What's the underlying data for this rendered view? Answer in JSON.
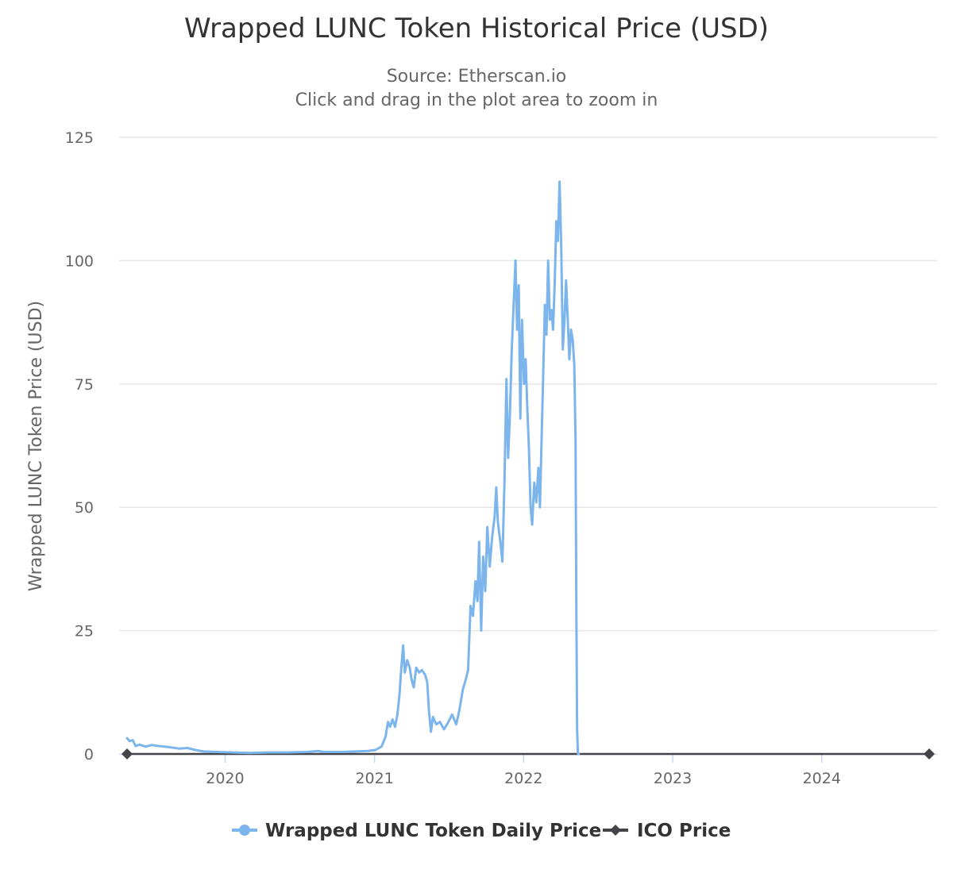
{
  "chart_data": {
    "type": "line",
    "title": "Wrapped LUNC Token Historical Price (USD)",
    "subtitle": "Source: Etherscan.io",
    "subtitle2": "Click and drag in the plot area to zoom in",
    "xlabel": "",
    "ylabel": "Wrapped LUNC Token Price (USD)",
    "ylim": [
      0,
      125
    ],
    "xlim": [
      "2019-05-06",
      "2024-09-20"
    ],
    "y_ticks": [
      0,
      25,
      50,
      75,
      100,
      125
    ],
    "x_ticks": [
      {
        "date": "2020-01-01",
        "label": "2020"
      },
      {
        "date": "2021-01-01",
        "label": "2021"
      },
      {
        "date": "2022-01-01",
        "label": "2022"
      },
      {
        "date": "2023-01-01",
        "label": "2023"
      },
      {
        "date": "2024-01-01",
        "label": "2024"
      }
    ],
    "grid": "horizontal",
    "legend_position": "bottom-center",
    "series": [
      {
        "name": "Wrapped LUNC Token Daily Price",
        "color": "#7cb5ec",
        "marker": "circle",
        "points": [
          [
            "2019-05-06",
            3.2
          ],
          [
            "2019-05-12",
            2.6
          ],
          [
            "2019-05-20",
            2.8
          ],
          [
            "2019-05-27",
            1.6
          ],
          [
            "2019-06-05",
            1.9
          ],
          [
            "2019-06-20",
            1.5
          ],
          [
            "2019-07-05",
            1.8
          ],
          [
            "2019-07-25",
            1.6
          ],
          [
            "2019-08-15",
            1.4
          ],
          [
            "2019-09-10",
            1.1
          ],
          [
            "2019-10-01",
            1.2
          ],
          [
            "2019-10-20",
            0.8
          ],
          [
            "2019-11-10",
            0.5
          ],
          [
            "2019-12-10",
            0.4
          ],
          [
            "2020-01-20",
            0.3
          ],
          [
            "2020-03-01",
            0.2
          ],
          [
            "2020-04-15",
            0.3
          ],
          [
            "2020-06-01",
            0.3
          ],
          [
            "2020-07-20",
            0.4
          ],
          [
            "2020-08-15",
            0.6
          ],
          [
            "2020-09-01",
            0.4
          ],
          [
            "2020-10-15",
            0.4
          ],
          [
            "2020-11-15",
            0.5
          ],
          [
            "2020-12-15",
            0.6
          ],
          [
            "2021-01-03",
            0.8
          ],
          [
            "2021-01-18",
            1.5
          ],
          [
            "2021-01-28",
            3.5
          ],
          [
            "2021-02-03",
            6.5
          ],
          [
            "2021-02-08",
            5.5
          ],
          [
            "2021-02-14",
            7.0
          ],
          [
            "2021-02-20",
            5.5
          ],
          [
            "2021-02-26",
            8.0
          ],
          [
            "2021-03-03",
            12.0
          ],
          [
            "2021-03-08",
            18.0
          ],
          [
            "2021-03-12",
            22.0
          ],
          [
            "2021-03-16",
            16.5
          ],
          [
            "2021-03-22",
            19.0
          ],
          [
            "2021-03-28",
            17.5
          ],
          [
            "2021-04-02",
            15.0
          ],
          [
            "2021-04-07",
            13.5
          ],
          [
            "2021-04-13",
            17.5
          ],
          [
            "2021-04-20",
            16.5
          ],
          [
            "2021-04-27",
            17.0
          ],
          [
            "2021-05-05",
            16.0
          ],
          [
            "2021-05-10",
            14.5
          ],
          [
            "2021-05-14",
            9.0
          ],
          [
            "2021-05-19",
            4.5
          ],
          [
            "2021-05-24",
            7.5
          ],
          [
            "2021-06-01",
            6.0
          ],
          [
            "2021-06-10",
            6.5
          ],
          [
            "2021-06-20",
            5.0
          ],
          [
            "2021-07-01",
            6.5
          ],
          [
            "2021-07-10",
            8.0
          ],
          [
            "2021-07-20",
            6.0
          ],
          [
            "2021-07-28",
            9.0
          ],
          [
            "2021-08-05",
            13.0
          ],
          [
            "2021-08-12",
            15.0
          ],
          [
            "2021-08-18",
            17.0
          ],
          [
            "2021-08-24",
            30.0
          ],
          [
            "2021-08-30",
            28.0
          ],
          [
            "2021-09-05",
            35.0
          ],
          [
            "2021-09-10",
            31.0
          ],
          [
            "2021-09-14",
            43.0
          ],
          [
            "2021-09-19",
            25.0
          ],
          [
            "2021-09-24",
            40.0
          ],
          [
            "2021-09-29",
            33.0
          ],
          [
            "2021-10-04",
            46.0
          ],
          [
            "2021-10-10",
            38.0
          ],
          [
            "2021-10-16",
            44.0
          ],
          [
            "2021-10-22",
            48.0
          ],
          [
            "2021-10-26",
            54.0
          ],
          [
            "2021-10-30",
            47.0
          ],
          [
            "2021-11-05",
            43.0
          ],
          [
            "2021-11-10",
            39.0
          ],
          [
            "2021-11-15",
            55.0
          ],
          [
            "2021-11-20",
            76.0
          ],
          [
            "2021-11-24",
            60.0
          ],
          [
            "2021-11-28",
            68.0
          ],
          [
            "2021-12-03",
            82.0
          ],
          [
            "2021-12-08",
            92.0
          ],
          [
            "2021-12-12",
            100.0
          ],
          [
            "2021-12-16",
            86.0
          ],
          [
            "2021-12-20",
            95.0
          ],
          [
            "2021-12-24",
            68.0
          ],
          [
            "2021-12-28",
            88.0
          ],
          [
            "2022-01-02",
            75.0
          ],
          [
            "2022-01-06",
            80.0
          ],
          [
            "2022-01-10",
            70.0
          ],
          [
            "2022-01-14",
            62.0
          ],
          [
            "2022-01-18",
            50.0
          ],
          [
            "2022-01-22",
            46.5
          ],
          [
            "2022-01-27",
            55.0
          ],
          [
            "2022-02-01",
            51.0
          ],
          [
            "2022-02-06",
            58.0
          ],
          [
            "2022-02-10",
            50.0
          ],
          [
            "2022-02-14",
            64.0
          ],
          [
            "2022-02-18",
            77.0
          ],
          [
            "2022-02-22",
            91.0
          ],
          [
            "2022-02-26",
            85.0
          ],
          [
            "2022-03-02",
            100.0
          ],
          [
            "2022-03-06",
            88.0
          ],
          [
            "2022-03-10",
            90.0
          ],
          [
            "2022-03-14",
            86.0
          ],
          [
            "2022-03-18",
            95.0
          ],
          [
            "2022-03-22",
            108.0
          ],
          [
            "2022-03-26",
            104.0
          ],
          [
            "2022-03-30",
            116.0
          ],
          [
            "2022-04-03",
            103.0
          ],
          [
            "2022-04-07",
            82.0
          ],
          [
            "2022-04-11",
            88.0
          ],
          [
            "2022-04-15",
            96.0
          ],
          [
            "2022-04-19",
            88.0
          ],
          [
            "2022-04-23",
            80.0
          ],
          [
            "2022-04-27",
            86.0
          ],
          [
            "2022-05-01",
            84.0
          ],
          [
            "2022-05-05",
            79.0
          ],
          [
            "2022-05-08",
            64.0
          ],
          [
            "2022-05-10",
            30.0
          ],
          [
            "2022-05-12",
            5.0
          ],
          [
            "2022-05-14",
            0.1
          ],
          [
            "2022-05-16",
            0.0
          ]
        ]
      },
      {
        "name": "ICO Price",
        "color": "#434348",
        "marker": "diamond",
        "points": [
          [
            "2019-05-06",
            0
          ],
          [
            "2024-09-20",
            0
          ]
        ]
      }
    ]
  }
}
